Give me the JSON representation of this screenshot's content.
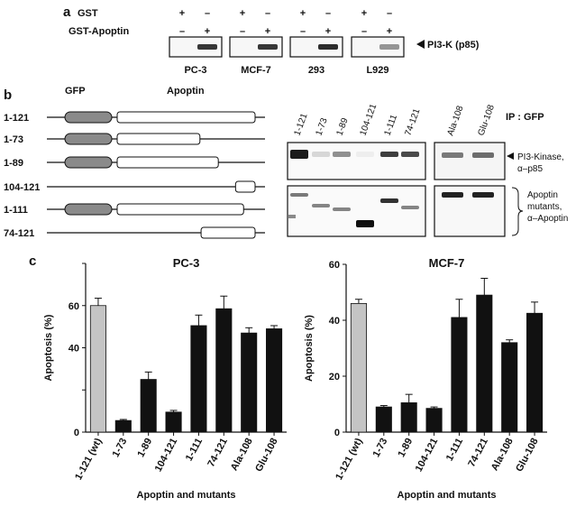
{
  "panel_a": {
    "letter": "a",
    "row_gst": "GST",
    "row_gst_apoptin": "GST-Apoptin",
    "plus": "+",
    "minus": "–",
    "cell_lines": [
      "PC-3",
      "MCF-7",
      "293",
      "L929"
    ],
    "band_strength": [
      0.85,
      0.85,
      0.9,
      0.45
    ],
    "arrow_label": "PI3-K (p85)"
  },
  "panel_b": {
    "letter": "b",
    "gfp_label": "GFP",
    "apoptin_label": "Apoptin",
    "constructs": [
      {
        "name": "1-121",
        "start": 1,
        "end": 121
      },
      {
        "name": "1-73",
        "start": 1,
        "end": 73
      },
      {
        "name": "1-89",
        "start": 1,
        "end": 89
      },
      {
        "name": "104-121",
        "start": 104,
        "end": 121
      },
      {
        "name": "1-111",
        "start": 1,
        "end": 111
      },
      {
        "name": "74-121",
        "start": 74,
        "end": 121
      }
    ],
    "blot_lanes_left": [
      "1-121",
      "1-73",
      "1-89",
      "104-121",
      "1-111",
      "74-121"
    ],
    "blot_lanes_right": [
      "Ala-108",
      "Glu-108"
    ],
    "ip_label": "IP : GFP",
    "top_blot_label_1": "PI3-Kinase,",
    "top_blot_label_2": "α–p85",
    "bottom_blot_label_1": "Apoptin",
    "bottom_blot_label_2": "mutants,",
    "bottom_blot_label_3": "α–Apoptin"
  },
  "panel_c": {
    "letter": "c"
  },
  "chart_data": [
    {
      "type": "bar",
      "title": "PC-3",
      "ylabel": "Apoptosis (%)",
      "xlabel": "Apoptin and mutants",
      "ylim": [
        0,
        80
      ],
      "yticks": [
        0,
        20,
        40,
        60,
        80
      ],
      "tick_labels": [
        "0",
        "",
        "40",
        "60",
        ""
      ],
      "categories": [
        "1-121 (wt)",
        "1-73",
        "1-89",
        "104-121",
        "1-111",
        "74-121",
        "Ala-108",
        "Glu-108"
      ],
      "values": [
        60,
        5.5,
        25,
        9.5,
        50.5,
        58.5,
        47,
        49
      ],
      "errors": [
        3.5,
        0.5,
        3.5,
        0.8,
        5,
        6,
        2.5,
        1.5
      ],
      "bar_colors": [
        "#c4c4c4",
        "#111111",
        "#111111",
        "#111111",
        "#111111",
        "#111111",
        "#111111",
        "#111111"
      ]
    },
    {
      "type": "bar",
      "title": "MCF-7",
      "ylabel": "Apoptosis (%)",
      "xlabel": "Apoptin and mutants",
      "ylim": [
        0,
        60
      ],
      "yticks": [
        0,
        20,
        40,
        60
      ],
      "tick_labels": [
        "0",
        "20",
        "40",
        "60"
      ],
      "categories": [
        "1-121 (wt)",
        "1-73",
        "1-89",
        "104-121",
        "1-111",
        "74-121",
        "Ala-108",
        "Glu-108"
      ],
      "values": [
        46,
        9,
        10.5,
        8.5,
        41,
        49,
        32,
        42.5
      ],
      "errors": [
        1.5,
        0.5,
        3,
        0.5,
        6.5,
        6,
        1,
        4
      ],
      "bar_colors": [
        "#c4c4c4",
        "#111111",
        "#111111",
        "#111111",
        "#111111",
        "#111111",
        "#111111",
        "#111111"
      ]
    }
  ]
}
